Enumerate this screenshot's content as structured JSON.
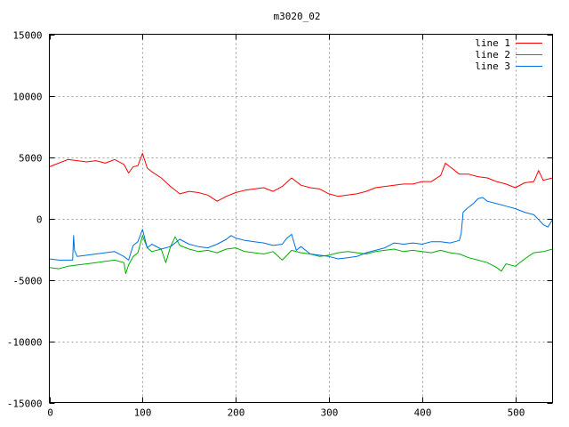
{
  "chart_data": {
    "type": "line",
    "title": "m3020_02",
    "xlabel": "",
    "ylabel": "",
    "xlim": [
      0,
      540
    ],
    "ylim": [
      -15000,
      15000
    ],
    "x_ticks": [
      0,
      100,
      200,
      300,
      400,
      500
    ],
    "y_ticks": [
      -15000,
      -10000,
      -5000,
      0,
      5000,
      10000,
      15000
    ],
    "grid": true,
    "legend_position": "top-right",
    "series": [
      {
        "name": "line 1",
        "color": "#ff0000",
        "x": [
          0,
          10,
          20,
          30,
          40,
          50,
          60,
          70,
          80,
          85,
          90,
          95,
          100,
          105,
          110,
          120,
          130,
          140,
          150,
          160,
          170,
          180,
          190,
          200,
          210,
          220,
          230,
          240,
          250,
          260,
          270,
          280,
          290,
          300,
          310,
          320,
          330,
          340,
          350,
          360,
          370,
          380,
          390,
          400,
          410,
          420,
          425,
          430,
          440,
          450,
          460,
          470,
          480,
          490,
          500,
          510,
          520,
          525,
          530,
          540
        ],
        "y": [
          4200,
          4500,
          4800,
          4700,
          4600,
          4700,
          4500,
          4800,
          4400,
          3700,
          4200,
          4300,
          5300,
          4100,
          3800,
          3300,
          2600,
          2000,
          2200,
          2100,
          1900,
          1400,
          1800,
          2100,
          2300,
          2400,
          2500,
          2200,
          2600,
          3300,
          2700,
          2500,
          2400,
          2000,
          1800,
          1900,
          2000,
          2200,
          2500,
          2600,
          2700,
          2800,
          2800,
          3000,
          3000,
          3500,
          4500,
          4200,
          3600,
          3600,
          3400,
          3300,
          3000,
          2800,
          2500,
          2900,
          3000,
          3900,
          3100,
          3300
        ]
      },
      {
        "name": "line 2",
        "color": "#00b000",
        "x": [
          0,
          10,
          20,
          30,
          40,
          50,
          60,
          70,
          80,
          82,
          85,
          90,
          95,
          100,
          105,
          110,
          120,
          125,
          130,
          135,
          140,
          150,
          160,
          170,
          180,
          190,
          200,
          210,
          220,
          230,
          240,
          250,
          260,
          270,
          280,
          290,
          300,
          310,
          320,
          330,
          340,
          350,
          360,
          370,
          380,
          390,
          400,
          410,
          420,
          430,
          440,
          450,
          460,
          470,
          480,
          485,
          490,
          500,
          510,
          520,
          530,
          540
        ],
        "y": [
          -4000,
          -4100,
          -3900,
          -3800,
          -3700,
          -3600,
          -3500,
          -3400,
          -3600,
          -4500,
          -3800,
          -3100,
          -2800,
          -1400,
          -2400,
          -2700,
          -2500,
          -3600,
          -2300,
          -1500,
          -2200,
          -2500,
          -2700,
          -2600,
          -2800,
          -2500,
          -2400,
          -2700,
          -2800,
          -2900,
          -2700,
          -3400,
          -2600,
          -2800,
          -2900,
          -3100,
          -3000,
          -2800,
          -2700,
          -2800,
          -2900,
          -2700,
          -2600,
          -2500,
          -2700,
          -2600,
          -2700,
          -2800,
          -2600,
          -2800,
          -2900,
          -3200,
          -3400,
          -3600,
          -4000,
          -4300,
          -3700,
          -3900,
          -3300,
          -2800,
          -2700,
          -2500
        ]
      },
      {
        "name": "line 3",
        "color": "#0070e0",
        "x": [
          0,
          10,
          20,
          25,
          26,
          27,
          30,
          40,
          50,
          60,
          70,
          80,
          85,
          90,
          95,
          100,
          105,
          110,
          120,
          130,
          140,
          150,
          160,
          170,
          180,
          190,
          195,
          200,
          210,
          220,
          230,
          240,
          250,
          255,
          260,
          265,
          270,
          280,
          290,
          300,
          310,
          320,
          330,
          340,
          350,
          360,
          370,
          380,
          390,
          400,
          410,
          420,
          430,
          440,
          442,
          444,
          448,
          455,
          460,
          465,
          470,
          480,
          490,
          500,
          510,
          520,
          525,
          530,
          535,
          540
        ],
        "y": [
          -3300,
          -3400,
          -3400,
          -3400,
          -1400,
          -2600,
          -3100,
          -3000,
          -2900,
          -2800,
          -2700,
          -3100,
          -3400,
          -2200,
          -1900,
          -900,
          -2400,
          -2100,
          -2500,
          -2300,
          -1700,
          -2100,
          -2300,
          -2400,
          -2100,
          -1700,
          -1400,
          -1600,
          -1800,
          -1900,
          -2000,
          -2200,
          -2100,
          -1600,
          -1300,
          -2600,
          -2300,
          -2900,
          -3000,
          -3100,
          -3300,
          -3200,
          -3100,
          -2800,
          -2600,
          -2400,
          -2000,
          -2100,
          -2000,
          -2100,
          -1900,
          -1900,
          -2000,
          -1800,
          -1200,
          500,
          800,
          1200,
          1600,
          1700,
          1400,
          1200,
          1000,
          800,
          500,
          300,
          -100,
          -500,
          -700,
          -100
        ]
      }
    ]
  }
}
